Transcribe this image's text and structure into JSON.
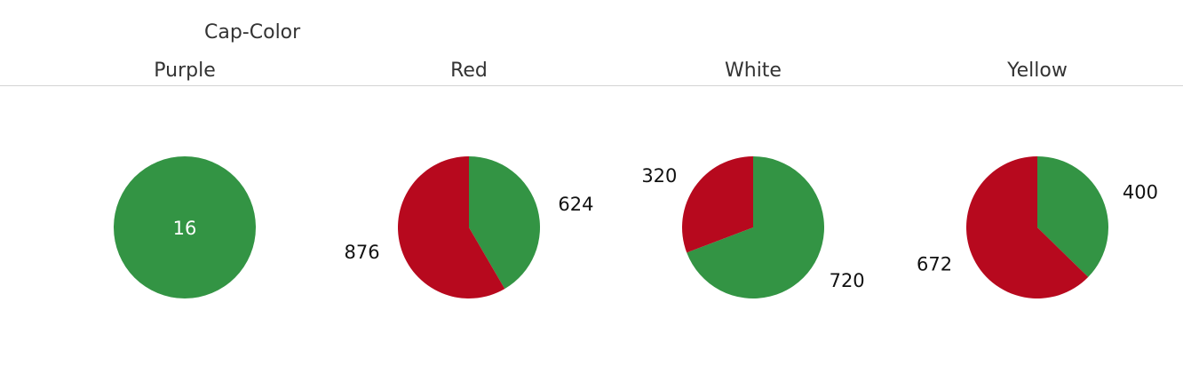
{
  "chart_data": {
    "type": "pie",
    "title": "",
    "column_field": "Cap-Color",
    "colors": {
      "green": "#339444",
      "red": "#b7091e"
    },
    "panels": [
      {
        "category": "Purple",
        "slices": [
          {
            "color": "green",
            "value": 16
          }
        ]
      },
      {
        "category": "Red",
        "slices": [
          {
            "color": "green",
            "value": 624
          },
          {
            "color": "red",
            "value": 876
          }
        ]
      },
      {
        "category": "White",
        "slices": [
          {
            "color": "green",
            "value": 720
          },
          {
            "color": "red",
            "value": 320
          }
        ]
      },
      {
        "category": "Yellow",
        "slices": [
          {
            "color": "green",
            "value": 400
          },
          {
            "color": "red",
            "value": 672
          }
        ]
      }
    ]
  }
}
